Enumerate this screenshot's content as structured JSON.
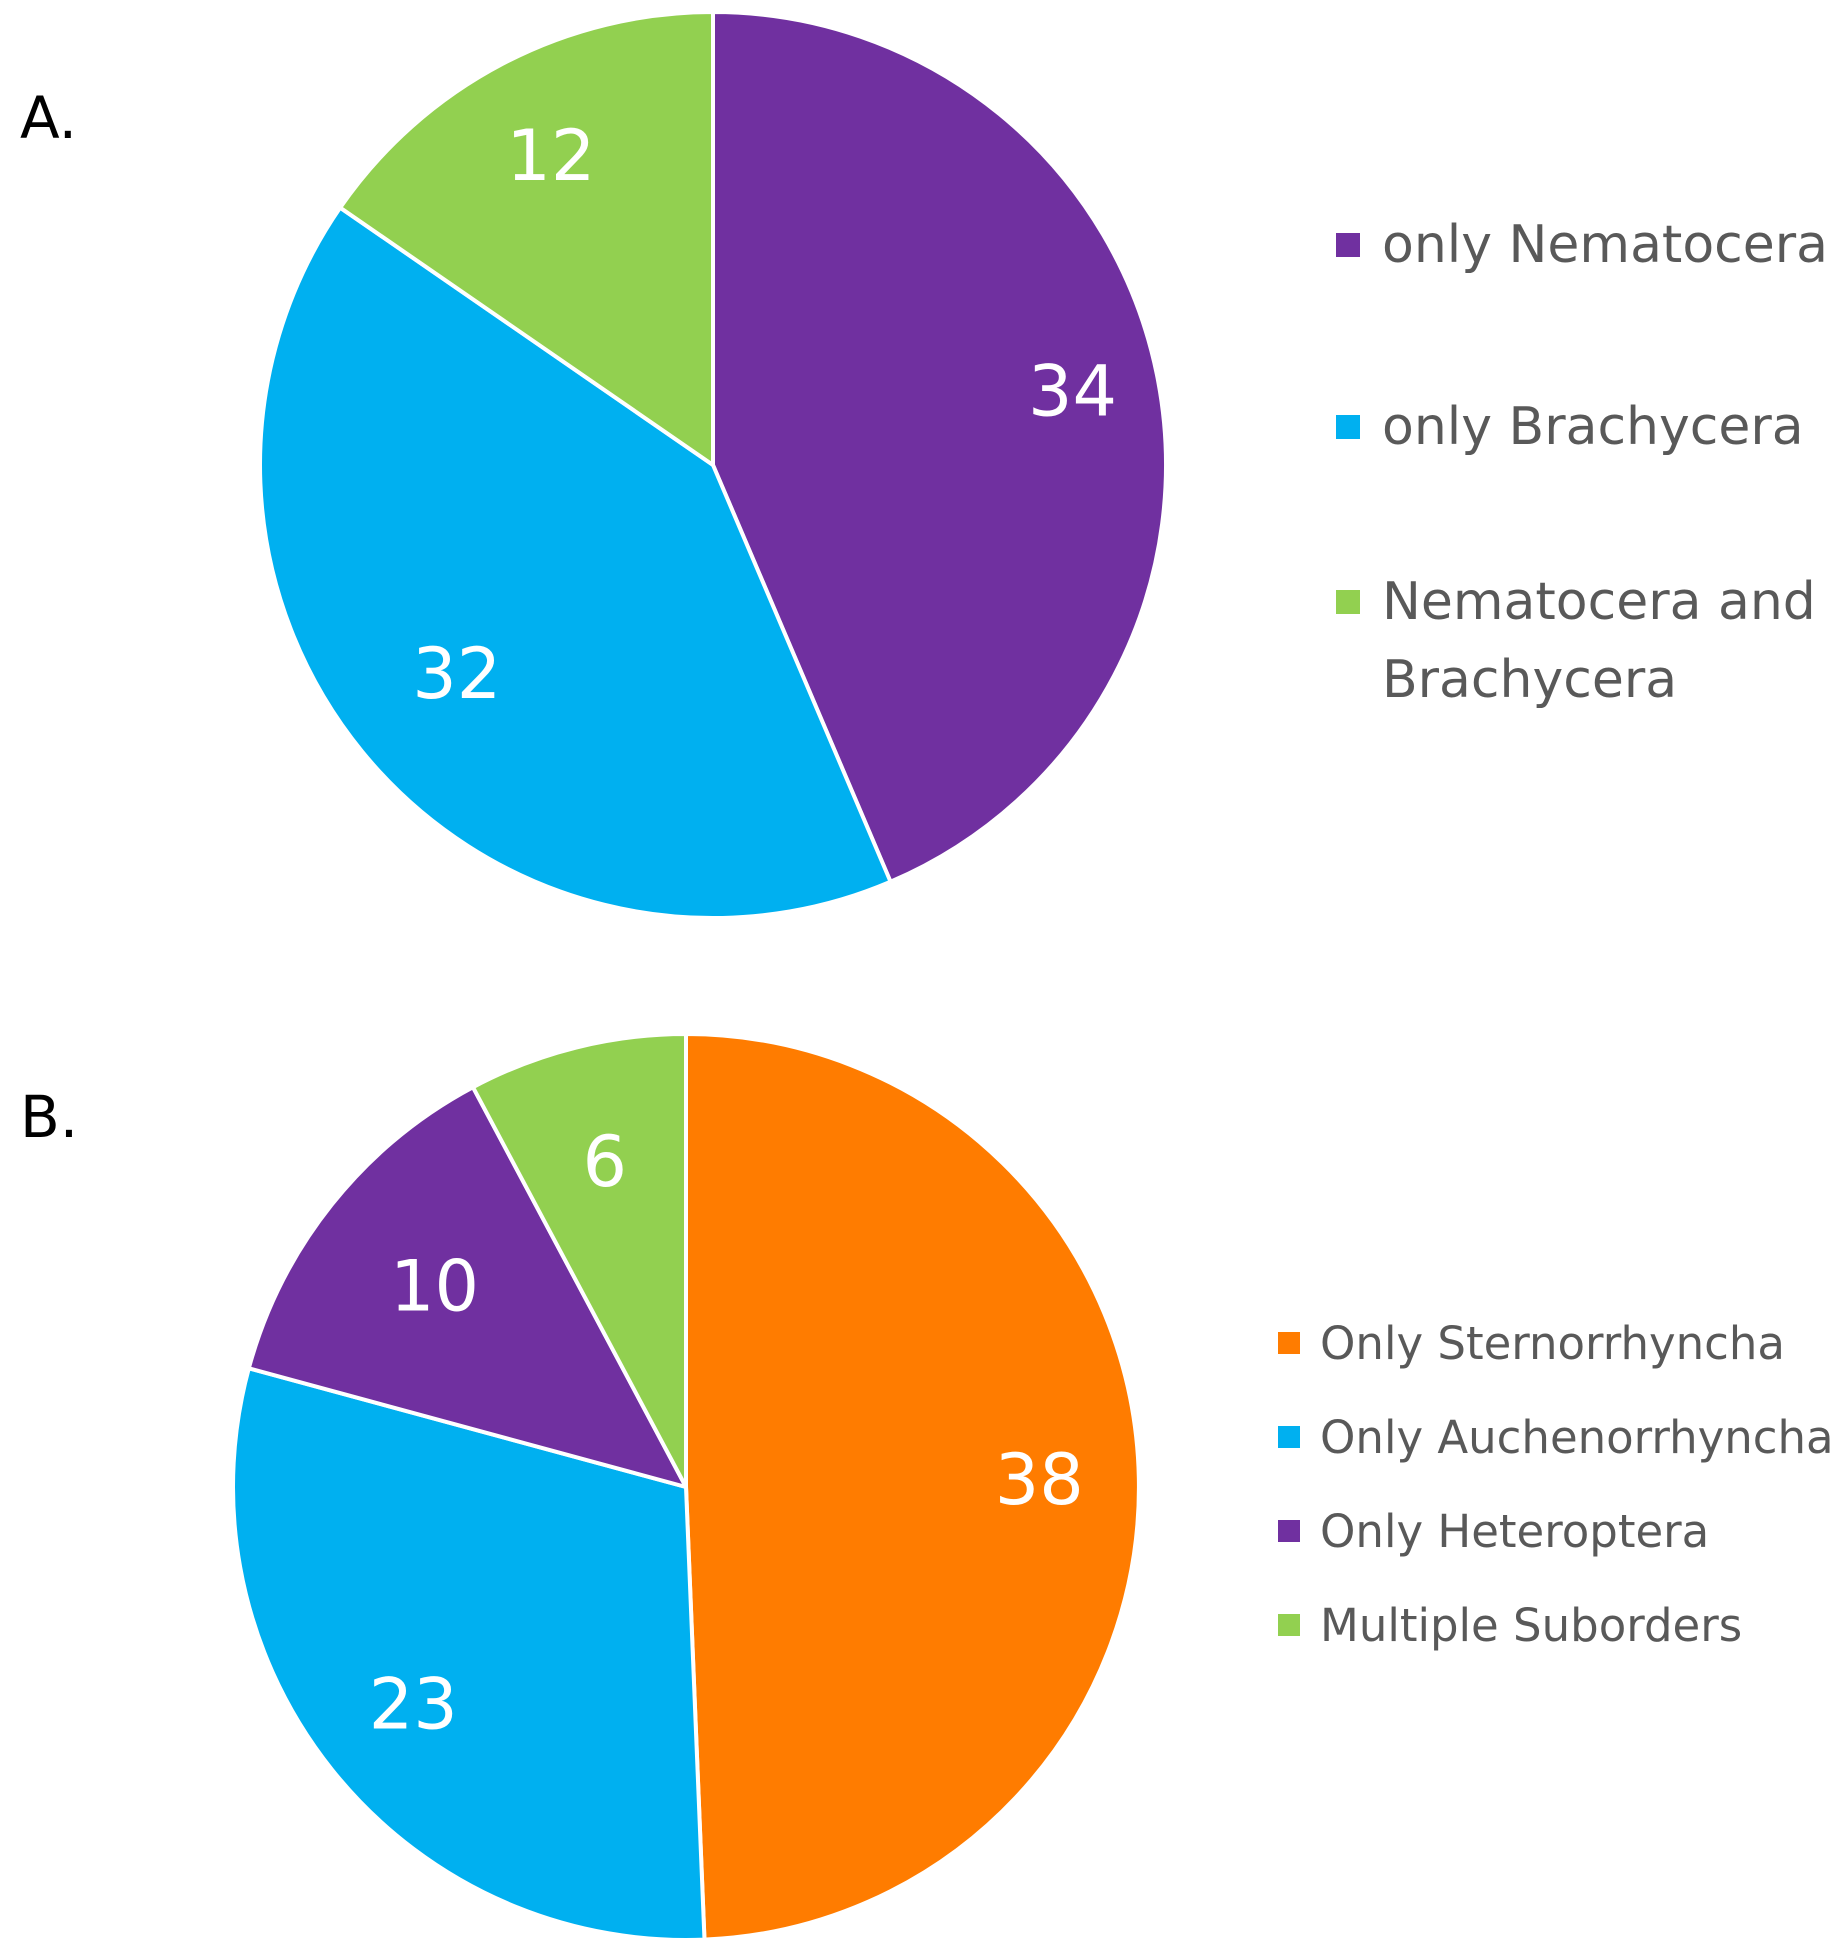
{
  "chart_data": [
    {
      "type": "pie",
      "panel_label": "A.",
      "categories": [
        "only Nematocera",
        "only Brachycera",
        "Nematocera and Brachycera"
      ],
      "legend": [
        {
          "lines": [
            "only Nematocera"
          ]
        },
        {
          "lines": [
            "only Brachycera"
          ]
        },
        {
          "lines": [
            "Nematocera and",
            "Brachycera"
          ]
        }
      ],
      "values": [
        34,
        32,
        12
      ],
      "colors": [
        "#7030A0",
        "#00B0F0",
        "#92D050"
      ],
      "data_labels": [
        "34",
        "32",
        "12"
      ],
      "start_angle_deg": 0,
      "direction": "clockwise",
      "legend_position": "right"
    },
    {
      "type": "pie",
      "panel_label": "B.",
      "categories": [
        "Only Sternorrhyncha",
        "Only Auchenorrhyncha",
        "Only Heteroptera",
        "Multiple Suborders"
      ],
      "legend": [
        {
          "lines": [
            "Only Sternorrhyncha"
          ]
        },
        {
          "lines": [
            "Only Auchenorrhyncha"
          ]
        },
        {
          "lines": [
            "Only Heteroptera"
          ]
        },
        {
          "lines": [
            "Multiple Suborders"
          ]
        }
      ],
      "values": [
        38,
        23,
        10,
        6
      ],
      "colors": [
        "#FF7C00",
        "#00B0F0",
        "#7030A0",
        "#92D050"
      ],
      "data_labels": [
        "38",
        "23",
        "10",
        "6"
      ],
      "start_angle_deg": 0,
      "direction": "clockwise",
      "legend_position": "right"
    }
  ]
}
